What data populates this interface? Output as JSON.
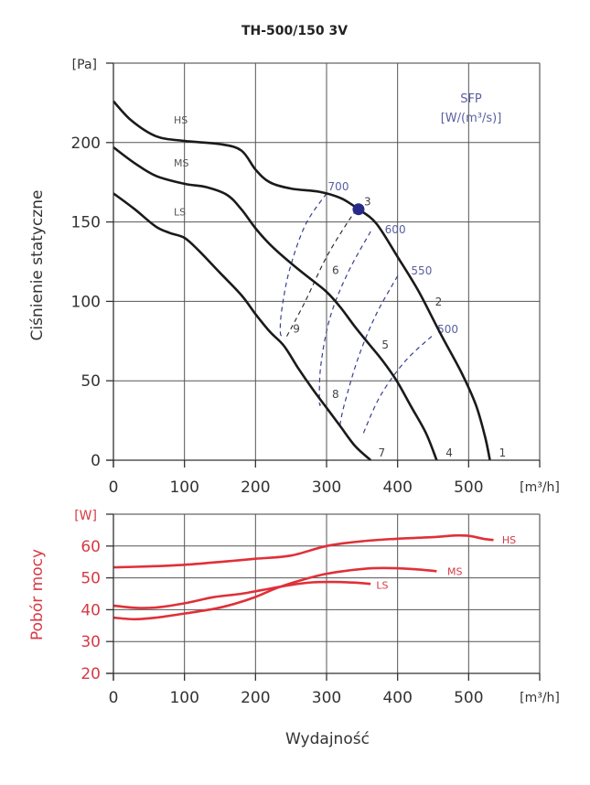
{
  "chart_data": [
    {
      "type": "line",
      "title": "TH-500/150 3V",
      "xlabel": "Wydajność",
      "x_unit": "[m³/h]",
      "ylabel": "Ciśnienie statyczne",
      "y_unit": "[Pa]",
      "xlim": [
        0,
        600
      ],
      "ylim": [
        0,
        250
      ],
      "xticks": [
        0,
        100,
        200,
        300,
        400,
        500
      ],
      "yticks": [
        0,
        50,
        100,
        150,
        200
      ],
      "grid": true,
      "series": [
        {
          "name": "HS",
          "color": "#1a1a1a",
          "label_at": [
            85,
            212
          ],
          "points": [
            [
              0,
              226
            ],
            [
              25,
              214
            ],
            [
              60,
              204
            ],
            [
              100,
              201
            ],
            [
              150,
              199
            ],
            [
              180,
              195
            ],
            [
              200,
              183
            ],
            [
              220,
              175
            ],
            [
              250,
              171
            ],
            [
              290,
              169
            ],
            [
              320,
              165
            ],
            [
              345,
              158
            ],
            [
              370,
              149
            ],
            [
              400,
              128
            ],
            [
              430,
              106
            ],
            [
              460,
              80
            ],
            [
              490,
              55
            ],
            [
              510,
              35
            ],
            [
              523,
              15
            ],
            [
              530,
              0
            ]
          ]
        },
        {
          "name": "MS",
          "color": "#1a1a1a",
          "label_at": [
            85,
            185
          ],
          "points": [
            [
              0,
              197
            ],
            [
              30,
              187
            ],
            [
              60,
              179
            ],
            [
              100,
              174
            ],
            [
              130,
              172
            ],
            [
              160,
              167
            ],
            [
              180,
              158
            ],
            [
              200,
              146
            ],
            [
              220,
              136
            ],
            [
              250,
              124
            ],
            [
              275,
              115
            ],
            [
              300,
              106
            ],
            [
              320,
              96
            ],
            [
              340,
              84
            ],
            [
              360,
              73
            ],
            [
              380,
              62
            ],
            [
              400,
              49
            ],
            [
              420,
              33
            ],
            [
              440,
              17
            ],
            [
              455,
              0
            ]
          ]
        },
        {
          "name": "LS",
          "color": "#1a1a1a",
          "label_at": [
            85,
            154
          ],
          "points": [
            [
              0,
              168
            ],
            [
              30,
              158
            ],
            [
              60,
              147
            ],
            [
              80,
              143
            ],
            [
              100,
              140
            ],
            [
              120,
              132
            ],
            [
              150,
              118
            ],
            [
              180,
              104
            ],
            [
              200,
              92
            ],
            [
              220,
              81
            ],
            [
              240,
              72
            ],
            [
              260,
              58
            ],
            [
              280,
              45
            ],
            [
              300,
              33
            ],
            [
              320,
              21
            ],
            [
              340,
              9
            ],
            [
              362,
              0
            ]
          ]
        }
      ],
      "operating_points": [
        {
          "label": "1",
          "x": 535,
          "y": 0
        },
        {
          "label": "2",
          "x": 445,
          "y": 95
        },
        {
          "label": "3",
          "x": 345,
          "y": 158
        },
        {
          "label": "4",
          "x": 460,
          "y": 0
        },
        {
          "label": "5",
          "x": 370,
          "y": 68
        },
        {
          "label": "6",
          "x": 300,
          "y": 115
        },
        {
          "label": "7",
          "x": 365,
          "y": 0
        },
        {
          "label": "8",
          "x": 300,
          "y": 37
        },
        {
          "label": "9",
          "x": 245,
          "y": 78
        }
      ],
      "highlight_point": {
        "x": 345,
        "y": 158,
        "color": "#262b8a"
      },
      "sfp_legend": {
        "title": "SFP",
        "unit": "[W/(m³/s)]"
      },
      "sfp_curves": [
        {
          "label": "700",
          "label_at": [
            302,
            170
          ],
          "points": [
            [
              300,
              168
            ],
            [
              270,
              148
            ],
            [
              248,
              120
            ],
            [
              237,
              95
            ],
            [
              235,
              80
            ],
            [
              240,
              78
            ]
          ]
        },
        {
          "label": "600",
          "label_at": [
            382,
            143
          ],
          "points": [
            [
              362,
              144
            ],
            [
              330,
              118
            ],
            [
              305,
              90
            ],
            [
              292,
              60
            ],
            [
              290,
              37
            ],
            [
              292,
              35
            ]
          ]
        },
        {
          "label": "550",
          "label_at": [
            419,
            117
          ],
          "points": [
            [
              400,
              116
            ],
            [
              370,
              92
            ],
            [
              345,
              65
            ],
            [
              325,
              35
            ],
            [
              318,
              20
            ]
          ]
        },
        {
          "label": "500",
          "label_at": [
            456,
            80
          ],
          "points": [
            [
              448,
              78
            ],
            [
              410,
              62
            ],
            [
              375,
              40
            ],
            [
              350,
              15
            ]
          ]
        }
      ],
      "system_curves": [
        {
          "points": [
            [
              244,
              78
            ],
            [
              270,
              100
            ],
            [
              300,
              128
            ],
            [
              330,
              150
            ],
            [
              343,
              158
            ]
          ]
        }
      ]
    },
    {
      "type": "line",
      "xlabel": "Wydajność",
      "x_unit": "[m³/h]",
      "ylabel": "Pobór mocy",
      "y_unit": "[W]",
      "xlim": [
        0,
        600
      ],
      "ylim": [
        20,
        70
      ],
      "xticks": [
        0,
        100,
        200,
        300,
        400,
        500
      ],
      "yticks": [
        20,
        30,
        40,
        50,
        60
      ],
      "grid": true,
      "series": [
        {
          "name": "HS",
          "color": "#e03038",
          "label_at": [
            547,
            62
          ],
          "points": [
            [
              0,
              53.3
            ],
            [
              50,
              53.6
            ],
            [
              100,
              54.1
            ],
            [
              150,
              55
            ],
            [
              200,
              56
            ],
            [
              250,
              57
            ],
            [
              300,
              60
            ],
            [
              350,
              61.5
            ],
            [
              400,
              62.3
            ],
            [
              450,
              62.8
            ],
            [
              480,
              63.3
            ],
            [
              500,
              63.2
            ],
            [
              520,
              62.3
            ],
            [
              535,
              61.9
            ]
          ]
        },
        {
          "name": "MS",
          "color": "#e03038",
          "label_at": [
            470,
            52
          ],
          "points": [
            [
              0,
              37.5
            ],
            [
              30,
              37
            ],
            [
              60,
              37.5
            ],
            [
              100,
              38.8
            ],
            [
              140,
              40.2
            ],
            [
              170,
              41.8
            ],
            [
              200,
              44
            ],
            [
              230,
              46.8
            ],
            [
              260,
              49
            ],
            [
              300,
              51.3
            ],
            [
              350,
              52.8
            ],
            [
              380,
              53.1
            ],
            [
              420,
              52.8
            ],
            [
              455,
              52.1
            ]
          ]
        },
        {
          "name": "LS",
          "color": "#e03038",
          "label_at": [
            370,
            47.8
          ],
          "points": [
            [
              0,
              41.3
            ],
            [
              30,
              40.6
            ],
            [
              60,
              40.7
            ],
            [
              100,
              42
            ],
            [
              140,
              43.9
            ],
            [
              180,
              45
            ],
            [
              210,
              46.2
            ],
            [
              250,
              47.8
            ],
            [
              280,
              48.6
            ],
            [
              310,
              48.7
            ],
            [
              340,
              48.5
            ],
            [
              362,
              48.1
            ]
          ]
        }
      ]
    }
  ]
}
